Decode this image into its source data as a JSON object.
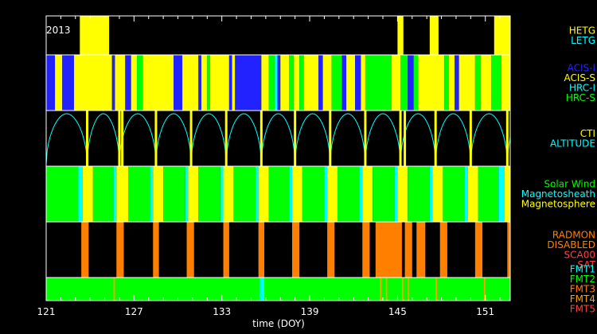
{
  "chart_data": {
    "type": "timeline",
    "year_label": "2013",
    "xlabel": "time (DOY)",
    "xlim": [
      121,
      152.7
    ],
    "x_ticks": [
      "121",
      "127",
      "133",
      "139",
      "145",
      "151"
    ],
    "x_tick_values": [
      121,
      127,
      133,
      139,
      145,
      151
    ],
    "panels": [
      {
        "id": "grating",
        "legend": [
          {
            "name": "HETG",
            "color": "#ffff00"
          },
          {
            "name": "LETG",
            "color": "#00ffff"
          }
        ],
        "background": "#000000",
        "segments": [
          {
            "start": 123.3,
            "end": 125.3,
            "state": "HETG"
          },
          {
            "start": 145.0,
            "end": 145.4,
            "state": "HETG"
          },
          {
            "start": 147.2,
            "end": 147.8,
            "state": "HETG"
          },
          {
            "start": 151.6,
            "end": 152.7,
            "state": "HETG"
          }
        ]
      },
      {
        "id": "instrument",
        "legend": [
          {
            "name": "ACIS-I",
            "color": "#2222ff"
          },
          {
            "name": "ACIS-S",
            "color": "#ffff00"
          },
          {
            "name": "HRC-I",
            "color": "#00ffff"
          },
          {
            "name": "HRC-S",
            "color": "#00ff00"
          }
        ],
        "segments": [
          {
            "start": 121.0,
            "end": 121.6,
            "state": "ACIS-I"
          },
          {
            "start": 121.6,
            "end": 122.1,
            "state": "ACIS-S"
          },
          {
            "start": 122.1,
            "end": 122.9,
            "state": "ACIS-I"
          },
          {
            "start": 122.9,
            "end": 125.5,
            "state": "ACIS-S"
          },
          {
            "start": 125.5,
            "end": 125.7,
            "state": "ACIS-I"
          },
          {
            "start": 125.7,
            "end": 126.4,
            "state": "ACIS-S"
          },
          {
            "start": 126.4,
            "end": 126.8,
            "state": "ACIS-I"
          },
          {
            "start": 126.8,
            "end": 127.2,
            "state": "ACIS-S"
          },
          {
            "start": 127.2,
            "end": 127.6,
            "state": "HRC-S"
          },
          {
            "start": 127.6,
            "end": 129.7,
            "state": "ACIS-S"
          },
          {
            "start": 129.7,
            "end": 130.3,
            "state": "ACIS-I"
          },
          {
            "start": 130.3,
            "end": 131.4,
            "state": "ACIS-S"
          },
          {
            "start": 131.4,
            "end": 131.6,
            "state": "ACIS-I"
          },
          {
            "start": 131.6,
            "end": 132.0,
            "state": "ACIS-S"
          },
          {
            "start": 132.0,
            "end": 132.2,
            "state": "HRC-S"
          },
          {
            "start": 132.2,
            "end": 133.5,
            "state": "ACIS-S"
          },
          {
            "start": 133.5,
            "end": 133.7,
            "state": "ACIS-I"
          },
          {
            "start": 133.7,
            "end": 133.9,
            "state": "ACIS-S"
          },
          {
            "start": 133.9,
            "end": 135.7,
            "state": "ACIS-I"
          },
          {
            "start": 135.7,
            "end": 136.2,
            "state": "ACIS-S"
          },
          {
            "start": 136.2,
            "end": 136.6,
            "state": "HRC-S"
          },
          {
            "start": 136.6,
            "end": 136.8,
            "state": "HRC-I"
          },
          {
            "start": 136.8,
            "end": 137.0,
            "state": "ACIS-I"
          },
          {
            "start": 137.0,
            "end": 137.6,
            "state": "ACIS-S"
          },
          {
            "start": 137.6,
            "end": 137.9,
            "state": "HRC-S"
          },
          {
            "start": 137.9,
            "end": 138.3,
            "state": "ACIS-S"
          },
          {
            "start": 138.3,
            "end": 138.6,
            "state": "HRC-S"
          },
          {
            "start": 138.6,
            "end": 139.6,
            "state": "ACIS-S"
          },
          {
            "start": 139.6,
            "end": 139.9,
            "state": "ACIS-I"
          },
          {
            "start": 139.9,
            "end": 140.5,
            "state": "ACIS-S"
          },
          {
            "start": 140.5,
            "end": 141.2,
            "state": "HRC-S"
          },
          {
            "start": 141.2,
            "end": 141.5,
            "state": "ACIS-I"
          },
          {
            "start": 141.5,
            "end": 142.1,
            "state": "ACIS-S"
          },
          {
            "start": 142.1,
            "end": 142.5,
            "state": "ACIS-I"
          },
          {
            "start": 142.5,
            "end": 142.8,
            "state": "ACIS-S"
          },
          {
            "start": 142.8,
            "end": 144.6,
            "state": "HRC-S"
          },
          {
            "start": 144.6,
            "end": 145.2,
            "state": "ACIS-S"
          },
          {
            "start": 145.2,
            "end": 145.7,
            "state": "HRC-S"
          },
          {
            "start": 145.7,
            "end": 146.1,
            "state": "ACIS-I"
          },
          {
            "start": 146.1,
            "end": 146.4,
            "state": "HRC-S"
          },
          {
            "start": 146.4,
            "end": 148.2,
            "state": "ACIS-S"
          },
          {
            "start": 148.2,
            "end": 148.5,
            "state": "HRC-S"
          },
          {
            "start": 148.5,
            "end": 148.9,
            "state": "ACIS-S"
          },
          {
            "start": 148.9,
            "end": 149.2,
            "state": "ACIS-I"
          },
          {
            "start": 149.2,
            "end": 150.3,
            "state": "ACIS-S"
          },
          {
            "start": 150.3,
            "end": 150.7,
            "state": "HRC-S"
          },
          {
            "start": 150.7,
            "end": 151.4,
            "state": "ACIS-S"
          },
          {
            "start": 151.4,
            "end": 152.1,
            "state": "HRC-S"
          },
          {
            "start": 152.1,
            "end": 152.7,
            "state": "ACIS-S"
          }
        ]
      },
      {
        "id": "altitude",
        "legend": [
          {
            "name": "CTI",
            "color": "#ffff00"
          },
          {
            "name": "ALTITUDE",
            "color": "#00ffff"
          }
        ],
        "orbit_starts": [
          121.0,
          123.8,
          126.0,
          128.5,
          130.9,
          133.3,
          135.7,
          138.0,
          140.4,
          142.8,
          145.2,
          147.6,
          150.0,
          152.5
        ],
        "cti_marks": [
          123.8,
          126.0,
          126.2,
          128.5,
          130.9,
          133.3,
          135.7,
          138.0,
          140.4,
          142.8,
          145.2,
          145.5,
          147.6,
          150.0,
          152.5
        ]
      },
      {
        "id": "environment",
        "legend": [
          {
            "name": "Solar Wind",
            "color": "#00ff00"
          },
          {
            "name": "Magnetosheath",
            "color": "#00ffff"
          },
          {
            "name": "Magnetosphere",
            "color": "#ffff00"
          }
        ],
        "segments": [
          {
            "start": 121.0,
            "end": 123.2,
            "state": "Solar Wind"
          },
          {
            "start": 123.2,
            "end": 123.5,
            "state": "Magnetosheath"
          },
          {
            "start": 123.5,
            "end": 124.2,
            "state": "Magnetosphere"
          },
          {
            "start": 124.2,
            "end": 125.6,
            "state": "Solar Wind"
          },
          {
            "start": 125.6,
            "end": 125.8,
            "state": "Magnetosheath"
          },
          {
            "start": 125.8,
            "end": 126.6,
            "state": "Magnetosphere"
          },
          {
            "start": 126.6,
            "end": 128.1,
            "state": "Solar Wind"
          },
          {
            "start": 128.1,
            "end": 128.3,
            "state": "Magnetosheath"
          },
          {
            "start": 128.3,
            "end": 129.0,
            "state": "Magnetosphere"
          },
          {
            "start": 129.0,
            "end": 130.5,
            "state": "Solar Wind"
          },
          {
            "start": 130.5,
            "end": 130.7,
            "state": "Magnetosheath"
          },
          {
            "start": 130.7,
            "end": 131.4,
            "state": "Magnetosphere"
          },
          {
            "start": 131.4,
            "end": 132.9,
            "state": "Solar Wind"
          },
          {
            "start": 132.9,
            "end": 133.1,
            "state": "Magnetosheath"
          },
          {
            "start": 133.1,
            "end": 133.8,
            "state": "Magnetosphere"
          },
          {
            "start": 133.8,
            "end": 135.3,
            "state": "Solar Wind"
          },
          {
            "start": 135.3,
            "end": 135.5,
            "state": "Magnetosheath"
          },
          {
            "start": 135.5,
            "end": 136.2,
            "state": "Magnetosphere"
          },
          {
            "start": 136.2,
            "end": 137.6,
            "state": "Solar Wind"
          },
          {
            "start": 137.6,
            "end": 137.8,
            "state": "Magnetosheath"
          },
          {
            "start": 137.8,
            "end": 138.5,
            "state": "Magnetosphere"
          },
          {
            "start": 138.5,
            "end": 140.0,
            "state": "Solar Wind"
          },
          {
            "start": 140.0,
            "end": 140.2,
            "state": "Magnetosheath"
          },
          {
            "start": 140.2,
            "end": 140.9,
            "state": "Magnetosphere"
          },
          {
            "start": 140.9,
            "end": 142.4,
            "state": "Solar Wind"
          },
          {
            "start": 142.4,
            "end": 142.6,
            "state": "Magnetosheath"
          },
          {
            "start": 142.6,
            "end": 143.3,
            "state": "Magnetosphere"
          },
          {
            "start": 143.3,
            "end": 144.8,
            "state": "Solar Wind"
          },
          {
            "start": 144.8,
            "end": 145.0,
            "state": "Magnetosheath"
          },
          {
            "start": 145.0,
            "end": 145.7,
            "state": "Magnetosphere"
          },
          {
            "start": 145.7,
            "end": 147.2,
            "state": "Solar Wind"
          },
          {
            "start": 147.2,
            "end": 147.4,
            "state": "Magnetosheath"
          },
          {
            "start": 147.4,
            "end": 148.1,
            "state": "Magnetosphere"
          },
          {
            "start": 148.1,
            "end": 149.6,
            "state": "Solar Wind"
          },
          {
            "start": 149.6,
            "end": 149.8,
            "state": "Magnetosheath"
          },
          {
            "start": 149.8,
            "end": 150.5,
            "state": "Magnetosphere"
          },
          {
            "start": 150.5,
            "end": 151.9,
            "state": "Solar Wind"
          },
          {
            "start": 151.9,
            "end": 152.3,
            "state": "Magnetosheath"
          },
          {
            "start": 152.3,
            "end": 152.7,
            "state": "Magnetosphere"
          }
        ]
      },
      {
        "id": "radmon",
        "legend": [
          {
            "name": "RADMON",
            "color": "#ff8000"
          },
          {
            "name": "DISABLED",
            "color": "#ff8000"
          },
          {
            "name": "SCA00",
            "color": "#ff4040"
          },
          {
            "name": "SAT",
            "color": "#ff4040"
          }
        ],
        "background": "#000000",
        "segments": [
          {
            "start": 123.4,
            "end": 123.9,
            "state": "DISABLED"
          },
          {
            "start": 125.8,
            "end": 126.3,
            "state": "DISABLED"
          },
          {
            "start": 128.3,
            "end": 128.7,
            "state": "DISABLED"
          },
          {
            "start": 130.6,
            "end": 131.1,
            "state": "DISABLED"
          },
          {
            "start": 133.1,
            "end": 133.5,
            "state": "DISABLED"
          },
          {
            "start": 135.5,
            "end": 135.9,
            "state": "DISABLED"
          },
          {
            "start": 137.8,
            "end": 138.3,
            "state": "DISABLED"
          },
          {
            "start": 140.2,
            "end": 140.7,
            "state": "DISABLED"
          },
          {
            "start": 142.6,
            "end": 143.1,
            "state": "DISABLED"
          },
          {
            "start": 143.5,
            "end": 145.3,
            "state": "DISABLED"
          },
          {
            "start": 145.5,
            "end": 146.0,
            "state": "DISABLED"
          },
          {
            "start": 146.3,
            "end": 146.9,
            "state": "DISABLED"
          },
          {
            "start": 147.9,
            "end": 148.4,
            "state": "DISABLED"
          },
          {
            "start": 150.3,
            "end": 150.8,
            "state": "DISABLED"
          },
          {
            "start": 152.5,
            "end": 152.7,
            "state": "DISABLED"
          }
        ]
      },
      {
        "id": "format",
        "legend": [
          {
            "name": "FMT1",
            "color": "#00ffff"
          },
          {
            "name": "FMT2",
            "color": "#00ff00"
          },
          {
            "name": "FMT3",
            "color": "#ff8000"
          },
          {
            "name": "FMT4",
            "color": "#ffa000"
          },
          {
            "name": "FMT5",
            "color": "#ff4040"
          }
        ],
        "background": "#00ff00",
        "segments": [
          {
            "start": 125.6,
            "end": 125.7,
            "state": "FMT4"
          },
          {
            "start": 135.6,
            "end": 135.9,
            "state": "FMT1"
          },
          {
            "start": 143.8,
            "end": 143.9,
            "state": "FMT4"
          },
          {
            "start": 144.2,
            "end": 144.3,
            "state": "FMT4"
          },
          {
            "start": 145.3,
            "end": 145.4,
            "state": "FMT4"
          },
          {
            "start": 145.7,
            "end": 145.8,
            "state": "FMT4"
          },
          {
            "start": 147.6,
            "end": 147.7,
            "state": "FMT4"
          },
          {
            "start": 150.9,
            "end": 151.0,
            "state": "FMT4"
          }
        ]
      }
    ]
  }
}
